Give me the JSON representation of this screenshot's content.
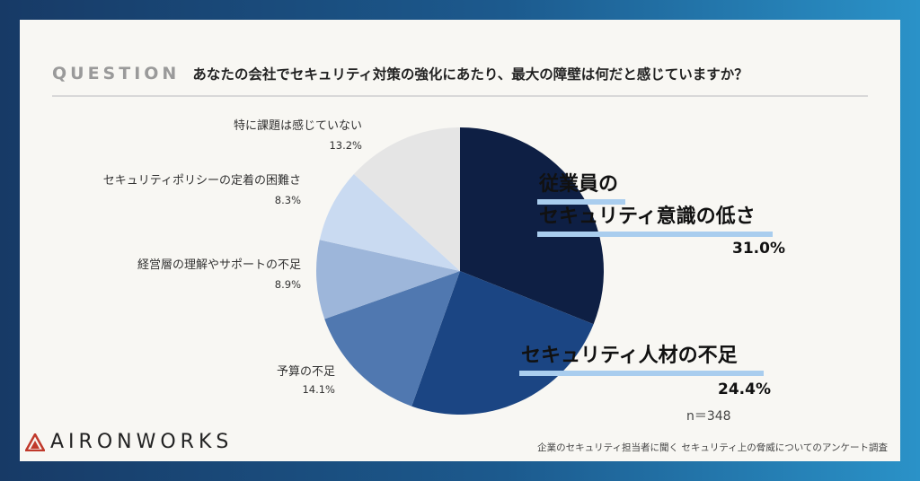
{
  "header": {
    "question_label": "QUESTION",
    "question_text": "あなたの会社でセキュリティ対策の強化にあたり、最大の障壁は何だと感じていますか？"
  },
  "chart_data": {
    "type": "pie",
    "n_label": "n＝348",
    "slices": [
      {
        "label": "従業員の|セキュリティ意識の低さ",
        "value": 31.0,
        "pct_text": "31.0%",
        "color": "#0e1f44",
        "highlight": true
      },
      {
        "label": "セキュリティ人材の不足",
        "value": 24.4,
        "pct_text": "24.4%",
        "color": "#1b4583",
        "highlight": true
      },
      {
        "label": "予算の不足",
        "value": 14.1,
        "pct_text": "14.1%",
        "color": "#5078b0",
        "highlight": false
      },
      {
        "label": "経営層の理解やサポートの不足",
        "value": 8.9,
        "pct_text": "8.9%",
        "color": "#9db6da",
        "highlight": false
      },
      {
        "label": "セキュリティポリシーの定着の困難さ",
        "value": 8.3,
        "pct_text": "8.3%",
        "color": "#c9daf1",
        "highlight": false
      },
      {
        "label": "特に課題は感じていない",
        "value": 13.2,
        "pct_text": "13.2%",
        "color": "#e5e5e5",
        "highlight": false
      }
    ]
  },
  "footer": {
    "logo_text": "AIRONWORKS",
    "source_text": "企業のセキュリティ担当者に聞く セキュリティ上の脅威についてのアンケート調査"
  },
  "colors": {
    "accent_underline": "#a9cdee",
    "logo_red": "#c0392b"
  }
}
